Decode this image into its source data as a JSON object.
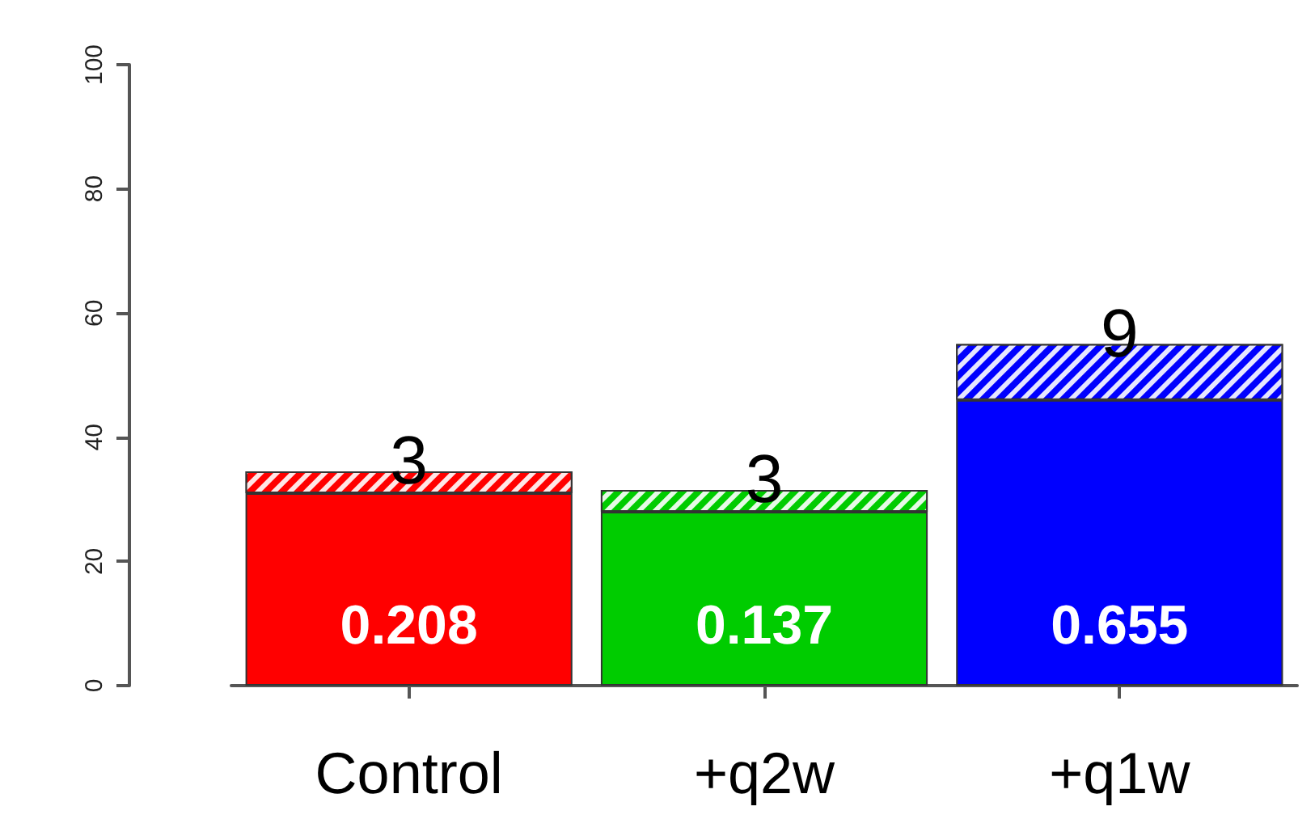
{
  "chart_data": {
    "type": "bar",
    "stacked": true,
    "categories": [
      "Control",
      "+q2w",
      "+q1w"
    ],
    "series": [
      {
        "colors": [
          "#ff0000",
          "#00cc00",
          "#0000ff"
        ],
        "values": [
          31,
          28,
          46
        ]
      },
      {
        "colors": [
          "#ff0000",
          "#00cc00",
          "#0000ff"
        ],
        "values": [
          3.5,
          3.5,
          9
        ],
        "value_labels": [
          "3",
          "3",
          "9"
        ]
      }
    ],
    "annotations": [
      "0.208",
      "0.137",
      "0.655"
    ],
    "ylim": [
      0,
      100
    ],
    "yticks": [
      0,
      20,
      40,
      60,
      80,
      100
    ],
    "grid": false
  }
}
